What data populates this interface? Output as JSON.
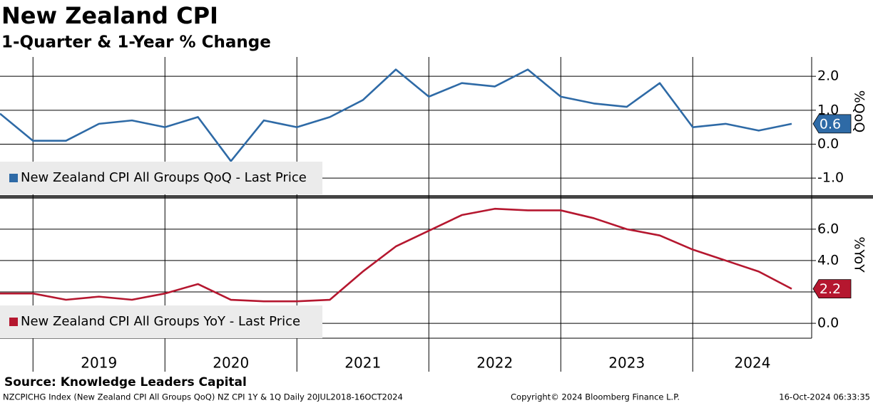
{
  "title": "New Zealand CPI",
  "subtitle": "1-Quarter & 1-Year % Change",
  "source": "Source: Knowledge Leaders Capital",
  "footer_left": "NZCPICHG Index (New Zealand CPI All Groups QoQ) NZ CPI 1Y & 1Q  Daily 20JUL2018-16OCT2024",
  "footer_center": "Copyright© 2024 Bloomberg Finance L.P.",
  "footer_right": "16-Oct-2024 06:33:35",
  "x_axis": {
    "labels": [
      "2019",
      "2020",
      "2021",
      "2022",
      "2023",
      "2024"
    ]
  },
  "chart_data": [
    {
      "type": "line",
      "y_label": "%QoQ",
      "ylim": [
        -1.48,
        2.57
      ],
      "yticks": [
        {
          "value": -1,
          "label": "-1.0"
        },
        {
          "value": 0,
          "label": "0.0"
        },
        {
          "value": 1,
          "label": "1.0"
        },
        {
          "value": 2,
          "label": "2.0"
        }
      ],
      "grid": true,
      "categories": [
        null,
        null,
        null,
        null,
        null,
        null,
        null,
        null,
        null,
        null,
        null,
        null,
        null,
        null,
        null,
        null,
        null,
        null,
        null,
        null,
        null,
        null,
        null,
        null,
        null
      ],
      "series": [
        {
          "name": "New Zealand CPI All Groups QoQ - Last Price",
          "color": "#2e6aa6",
          "values": [
            0.9,
            0.1,
            0.1,
            0.6,
            0.7,
            0.5,
            0.8,
            -0.5,
            0.7,
            0.5,
            0.8,
            1.3,
            2.2,
            1.4,
            1.8,
            1.7,
            2.2,
            1.4,
            1.2,
            1.1,
            1.8,
            0.5,
            0.6,
            0.4,
            0.6
          ]
        }
      ]
    },
    {
      "type": "line",
      "y_label": "%YoY",
      "ylim": [
        -0.95,
        7.9
      ],
      "yticks": [
        {
          "value": 0,
          "label": "0.0"
        },
        {
          "value": 2,
          "label": "2.0"
        },
        {
          "value": 4,
          "label": "4.0"
        },
        {
          "value": 6,
          "label": "6.0"
        }
      ],
      "grid": true,
      "categories": [
        null,
        null,
        null,
        null,
        null,
        null,
        null,
        null,
        null,
        null,
        null,
        null,
        null,
        null,
        null,
        null,
        null,
        null,
        null,
        null,
        null,
        null,
        null,
        null,
        null
      ],
      "series": [
        {
          "name": "New Zealand CPI All Groups YoY - Last Price",
          "color": "#b5172f",
          "values": [
            1.9,
            1.9,
            1.5,
            1.7,
            1.5,
            1.9,
            2.5,
            1.5,
            1.4,
            1.4,
            1.5,
            3.3,
            4.9,
            5.9,
            6.9,
            7.3,
            7.2,
            7.2,
            6.7,
            6.0,
            5.6,
            4.7,
            4.0,
            3.3,
            2.2
          ]
        }
      ]
    }
  ]
}
